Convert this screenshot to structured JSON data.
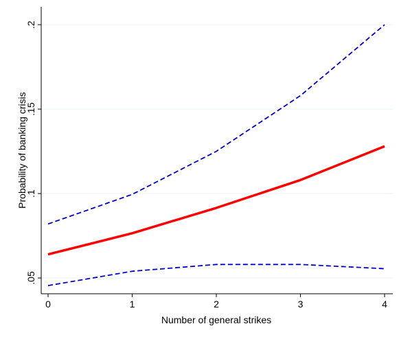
{
  "chart_data": {
    "type": "line",
    "xlabel": "Number of general strikes",
    "ylabel": "Probability of banking crisis",
    "xlim": [
      0,
      4
    ],
    "ylim": [
      0.045,
      0.2
    ],
    "x_ticks": [
      0,
      1,
      2,
      3,
      4
    ],
    "x_tick_labels": [
      "0",
      "1",
      "2",
      "3",
      "4"
    ],
    "y_ticks": [
      0.05,
      0.1,
      0.15,
      0.2
    ],
    "y_tick_labels": [
      ".05",
      ".1",
      ".15",
      ".2"
    ],
    "grid": "horizontal",
    "legend": "none",
    "x": [
      0,
      1,
      2,
      3,
      4
    ],
    "series": [
      {
        "values": [
          0.064,
          0.0765,
          0.0915,
          0.108,
          0.128
        ],
        "color": "#ff0000",
        "style": "solid"
      },
      {
        "values": [
          0.082,
          0.0995,
          0.125,
          0.158,
          0.2
        ],
        "color": "#0000cc",
        "style": "dashed"
      },
      {
        "values": [
          0.0455,
          0.054,
          0.058,
          0.058,
          0.0555
        ],
        "color": "#0000cc",
        "style": "dashed"
      }
    ]
  }
}
